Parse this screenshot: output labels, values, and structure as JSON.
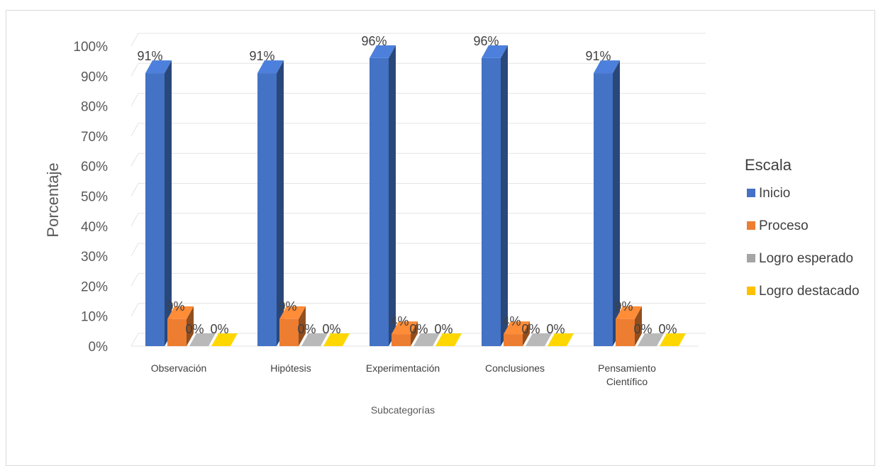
{
  "chart_data": {
    "type": "bar",
    "title": "",
    "xlabel": "Subcategorías",
    "ylabel": "Porcentaje",
    "ylim": [
      0,
      100
    ],
    "yticks": [
      "0%",
      "10%",
      "20%",
      "30%",
      "40%",
      "50%",
      "60%",
      "70%",
      "80%",
      "90%",
      "100%"
    ],
    "categories": [
      [
        "Observación"
      ],
      [
        "Hipótesis"
      ],
      [
        "Experimentación"
      ],
      [
        "Conclusiones"
      ],
      [
        "Pensamiento",
        "Científico"
      ]
    ],
    "series": [
      {
        "name": "Inicio",
        "values": [
          91,
          91,
          96,
          96,
          91
        ],
        "labels": [
          "91%",
          "91%",
          "96%",
          "96%",
          "91%"
        ],
        "color": "#4472C4"
      },
      {
        "name": "Proceso",
        "values": [
          9,
          9,
          4,
          4,
          9
        ],
        "labels": [
          "9%",
          "9%",
          "4%",
          "4%",
          "9%"
        ],
        "color": "#ED7D31"
      },
      {
        "name": "Logro esperado",
        "values": [
          0,
          0,
          0,
          0,
          0
        ],
        "labels": [
          "0%",
          "0%",
          "0%",
          "0%",
          "0%"
        ],
        "color": "#A5A5A5"
      },
      {
        "name": "Logro destacado",
        "values": [
          0,
          0,
          0,
          0,
          0
        ],
        "labels": [
          "0%",
          "0%",
          "0%",
          "0%",
          "0%"
        ],
        "color": "#FFC000"
      }
    ],
    "legend_title": "Escala",
    "legend_position": "right",
    "grid": true,
    "style": "3d-column"
  }
}
